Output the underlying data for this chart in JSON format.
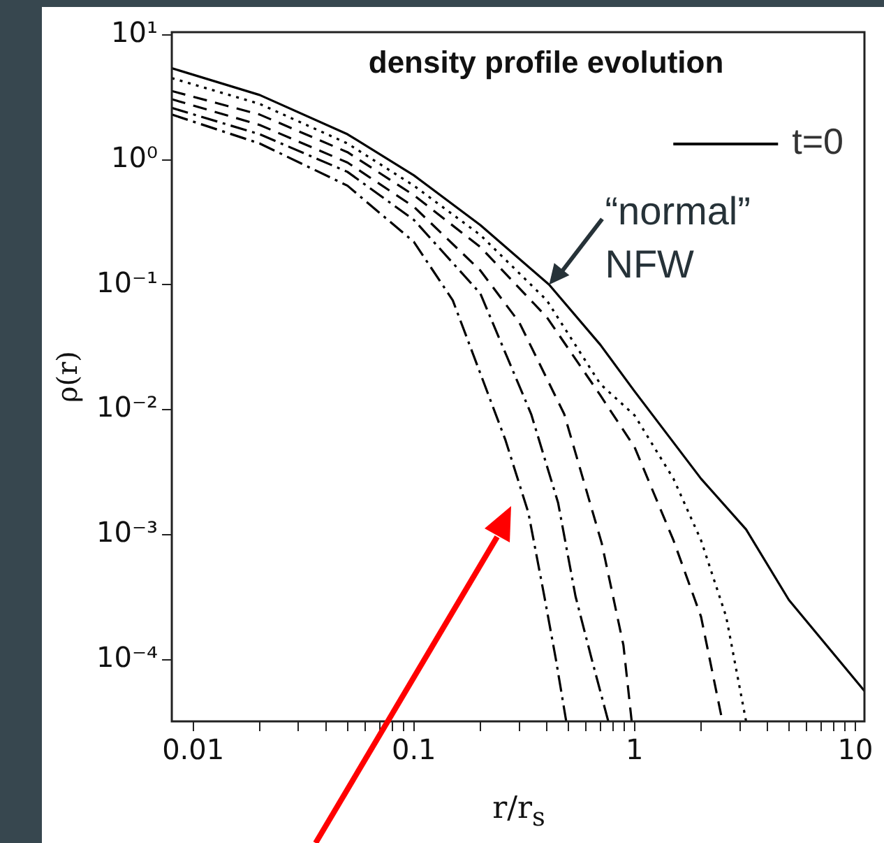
{
  "chart_data": {
    "type": "line",
    "title": "density profile evolution",
    "xlabel": "r/r$_{s}$",
    "ylabel": "ρ(r)",
    "log": "xy",
    "grid": false,
    "legend": "top right",
    "marker": "none",
    "xlim": [
      0.008,
      11
    ],
    "ylim": [
      3.2e-05,
      10.5
    ],
    "xticks": [
      0.01,
      {
        "value": 0.02,
        "label": null
      },
      {
        "value": 0.03,
        "label": null
      },
      {
        "value": 0.04,
        "label": null
      },
      {
        "value": 0.05,
        "label": null
      },
      {
        "value": 0.06,
        "label": null
      },
      {
        "value": 0.07,
        "label": null
      },
      {
        "value": 0.08,
        "label": null
      },
      {
        "value": 0.09,
        "label": null
      },
      0.1,
      {
        "value": 0.2,
        "label": null
      },
      {
        "value": 0.3,
        "label": null
      },
      {
        "value": 0.4,
        "label": null
      },
      {
        "value": 0.5,
        "label": null
      },
      {
        "value": 0.6,
        "label": null
      },
      {
        "value": 0.7,
        "label": null
      },
      {
        "value": 0.8,
        "label": null
      },
      {
        "value": 0.9,
        "label": null
      },
      1,
      {
        "value": 2,
        "label": null
      },
      {
        "value": 3,
        "label": null
      },
      {
        "value": 4,
        "label": null
      },
      {
        "value": 5,
        "label": null
      },
      {
        "value": 6,
        "label": null
      },
      {
        "value": 7,
        "label": null
      },
      {
        "value": 8,
        "label": null
      },
      {
        "value": 9,
        "label": null
      },
      10
    ],
    "yticks": [
      {
        "value": 0.0001,
        "label": "10⁻⁴"
      },
      {
        "value": 0.001,
        "label": "10⁻³"
      },
      {
        "value": 0.01,
        "label": "10⁻²"
      },
      {
        "value": 0.1,
        "label": "10⁻¹"
      },
      {
        "value": 1,
        "label": "10⁰"
      },
      {
        "value": 10,
        "label": "10¹"
      }
    ],
    "annotations": [
      {
        "text": "“normal” NFW",
        "x": 0.41,
        "y": 0.1
      }
    ],
    "series": [
      {
        "name": "t=0",
        "color": "#000000",
        "line_style": "solid",
        "x": [
          0.008,
          0.02,
          0.05,
          0.1,
          0.2,
          0.41,
          0.7,
          1,
          2,
          3.2,
          5,
          11
        ],
        "values": [
          5.4,
          3.3,
          1.6,
          0.75,
          0.3,
          0.1,
          0.033,
          0.014,
          0.0028,
          0.0011,
          0.0003,
          5.6e-05
        ]
      },
      {
        "color": "#000000",
        "line_style": "dotted",
        "x": [
          0.008,
          0.02,
          0.05,
          0.1,
          0.2,
          0.4,
          0.7,
          1,
          1.5,
          2,
          2.6,
          3.2
        ],
        "values": [
          4.5,
          2.8,
          1.35,
          0.62,
          0.25,
          0.075,
          0.016,
          0.009,
          0.0028,
          0.0009,
          0.00022,
          3.2e-05
        ]
      },
      {
        "color": "#000000",
        "line_style": "dashed",
        "x": [
          0.008,
          0.02,
          0.05,
          0.1,
          0.2,
          0.4,
          0.7,
          1,
          1.5,
          2,
          2.5
        ],
        "values": [
          3.55,
          2.3,
          1.15,
          0.52,
          0.2,
          0.055,
          0.013,
          0.005,
          0.0009,
          0.00022,
          3.2e-05
        ]
      },
      {
        "color": "#000000",
        "line_style": "dashed",
        "x": [
          0.008,
          0.02,
          0.05,
          0.1,
          0.2,
          0.3,
          0.48,
          0.71,
          0.89,
          0.97
        ],
        "values": [
          3.05,
          1.9,
          0.95,
          0.42,
          0.13,
          0.05,
          0.0092,
          0.00085,
          0.00013,
          3.2e-05
        ]
      },
      {
        "color": "#000000",
        "line_style": "dashdot",
        "x": [
          0.008,
          0.02,
          0.05,
          0.1,
          0.2,
          0.34,
          0.45,
          0.54,
          0.64,
          0.76
        ],
        "values": [
          2.6,
          1.6,
          0.8,
          0.33,
          0.085,
          0.0092,
          0.0018,
          0.00032,
          0.0001,
          3.2e-05
        ]
      },
      {
        "color": "#000000",
        "line_style": "dashdot",
        "x": [
          0.008,
          0.02,
          0.05,
          0.1,
          0.15,
          0.26,
          0.33,
          0.39,
          0.44,
          0.49
        ],
        "values": [
          2.3,
          1.35,
          0.62,
          0.22,
          0.075,
          0.0057,
          0.0015,
          0.00032,
          0.0001,
          3.2e-05
        ]
      }
    ]
  }
}
